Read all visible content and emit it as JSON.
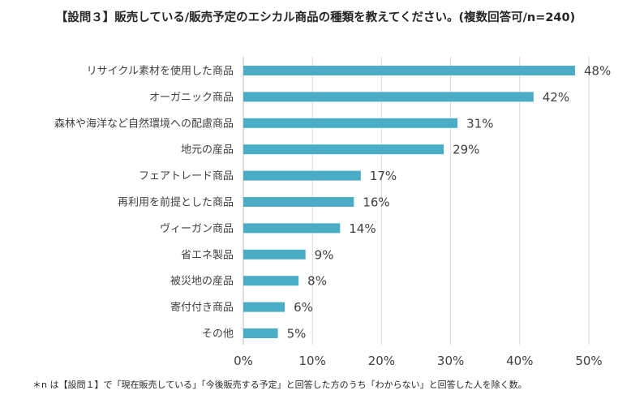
{
  "chart_data": {
    "type": "bar",
    "orientation": "horizontal",
    "title": "【設問３】販売している/販売予定のエシカル商品の種類を教えてください。(複数回答可/n=240)",
    "categories": [
      "リサイクル素材を使用した商品",
      "オーガニック商品",
      "森林や海洋など自然環境への配慮商品",
      "地元の産品",
      "フェアトレード商品",
      "再利用を前提とした商品",
      "ヴィーガン商品",
      "省エネ製品",
      "被災地の産品",
      "寄付付き商品",
      "その他"
    ],
    "values": [
      48,
      42,
      31,
      29,
      17,
      16,
      14,
      9,
      8,
      6,
      5
    ],
    "value_labels": [
      "48%",
      "42%",
      "31%",
      "29%",
      "17%",
      "16%",
      "14%",
      "9%",
      "8%",
      "6%",
      "5%"
    ],
    "xlim": [
      0,
      50
    ],
    "xticks": [
      0,
      10,
      20,
      30,
      40,
      50
    ],
    "xtick_labels": [
      "0%",
      "10%",
      "20%",
      "30%",
      "40%",
      "50%"
    ],
    "xlabel": "",
    "ylabel": "",
    "grid": true,
    "bar_color": "#4bacc6",
    "grid_color": "#d9d9d9"
  },
  "footnote": "＊n は【設問１】で「現在販売している」「今後販売する予定」と回答した方のうち「わからない」と回答した人を除く数。"
}
